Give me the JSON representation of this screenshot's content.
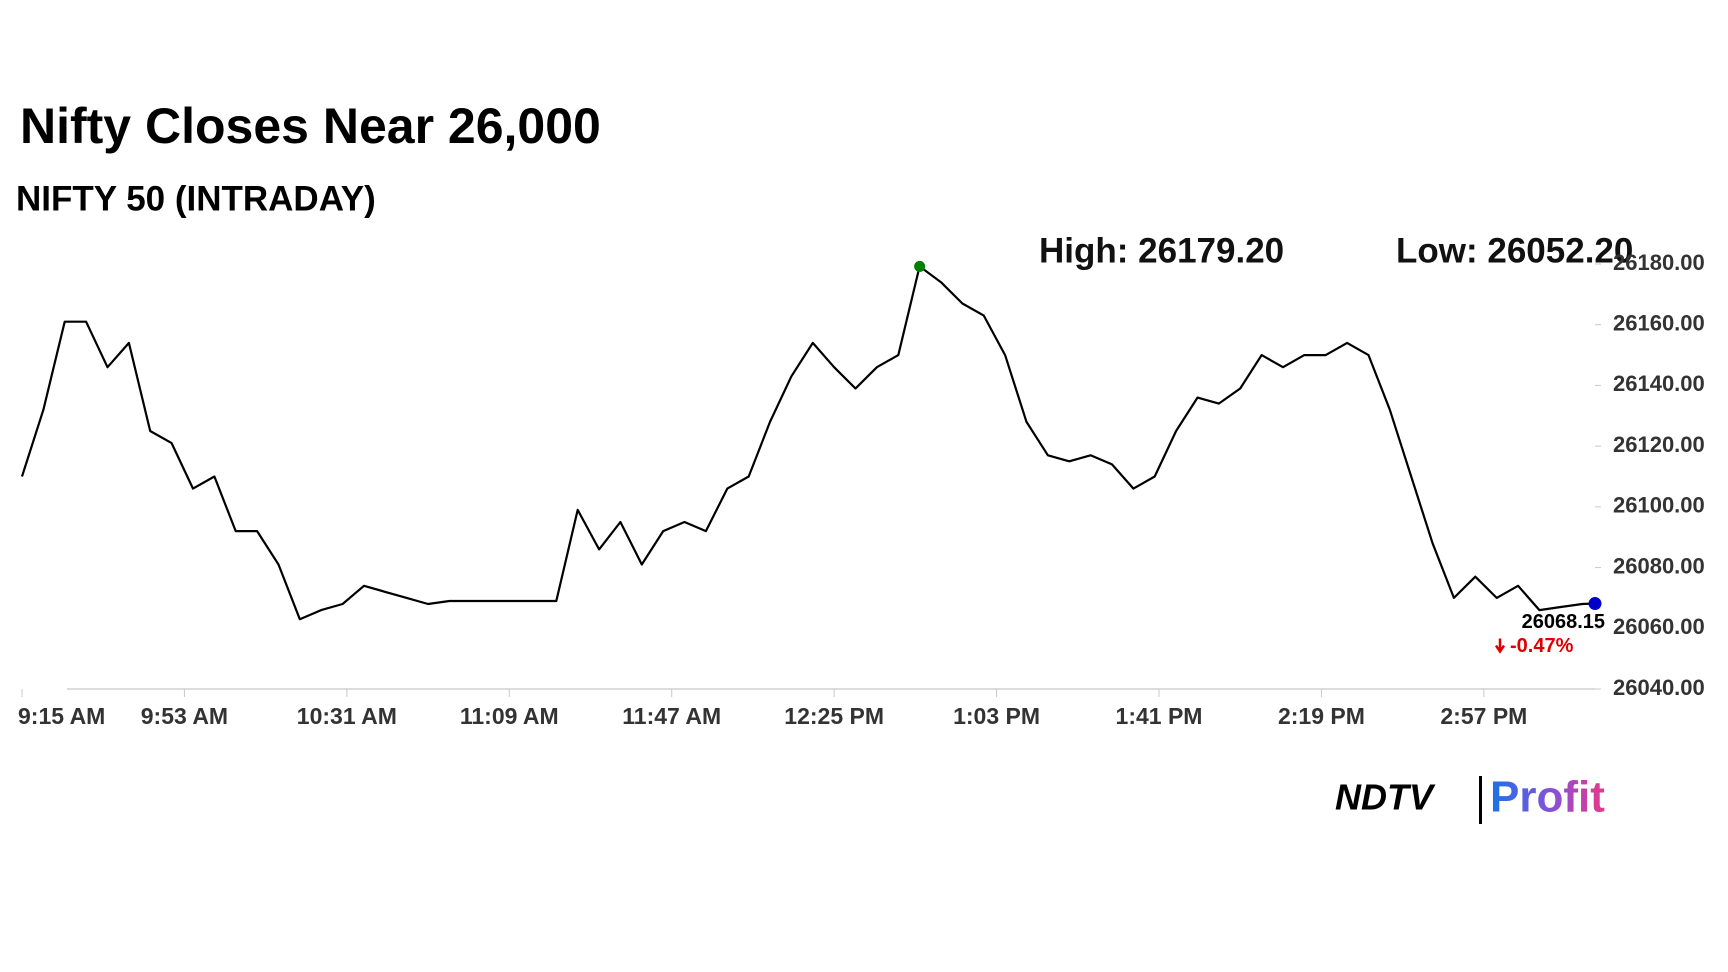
{
  "chart_data": {
    "type": "line",
    "title": "Nifty Closes Near 26,000",
    "subtitle": "NIFTY 50 (INTRADAY)",
    "high_label": "High: 26179.20",
    "low_label": "Low: 26052.20",
    "change_label": "-0.47%",
    "change_color": "#e00000",
    "color": "#000000",
    "high_marker_color": "#008000",
    "last_marker_color": "#0000c8",
    "x": [
      "9:15 AM",
      "9:20 AM",
      "9:25 AM",
      "9:30 AM",
      "9:35 AM",
      "9:40 AM",
      "9:45 AM",
      "9:50 AM",
      "9:55 AM",
      "10:00 AM",
      "10:05 AM",
      "10:10 AM",
      "10:15 AM",
      "10:20 AM",
      "10:25 AM",
      "10:30 AM",
      "10:35 AM",
      "10:40 AM",
      "10:45 AM",
      "10:50 AM",
      "10:55 AM",
      "11:00 AM",
      "11:05 AM",
      "11:10 AM",
      "11:15 AM",
      "11:20 AM",
      "11:25 AM",
      "11:30 AM",
      "11:35 AM",
      "11:40 AM",
      "11:45 AM",
      "11:50 AM",
      "11:55 AM",
      "12:00 PM",
      "12:05 PM",
      "12:10 PM",
      "12:15 PM",
      "12:20 PM",
      "12:25 PM",
      "12:30 PM",
      "12:35 PM",
      "12:40 PM",
      "12:45 PM",
      "12:50 PM",
      "12:55 PM",
      "1:00 PM",
      "1:05 PM",
      "1:10 PM",
      "1:15 PM",
      "1:20 PM",
      "1:25 PM",
      "1:30 PM",
      "1:35 PM",
      "1:40 PM",
      "1:45 PM",
      "1:50 PM",
      "1:55 PM",
      "2:00 PM",
      "2:05 PM",
      "2:10 PM",
      "2:15 PM",
      "2:20 PM",
      "2:25 PM",
      "2:30 PM",
      "2:35 PM",
      "2:40 PM",
      "2:45 PM",
      "2:50 PM",
      "2:55 PM",
      "3:00 PM",
      "3:05 PM",
      "3:10 PM",
      "3:15 PM",
      "3:20 PM",
      "3:23 PM"
    ],
    "values": [
      26110,
      26132,
      26161,
      26161,
      26146,
      26154,
      26125,
      26121,
      26106,
      26110,
      26092,
      26092,
      26081,
      26063,
      26066,
      26068,
      26074,
      26072,
      26070,
      26068,
      26069,
      26069,
      26069,
      26069,
      26069,
      26069,
      26099,
      26086,
      26095,
      26081,
      26092,
      26095,
      26092,
      26106,
      26110,
      26128,
      26143,
      26154,
      26146,
      26139,
      26146,
      26150,
      26179.2,
      26174,
      26167,
      26163,
      26150,
      26128,
      26117,
      26115,
      26117,
      26114,
      26106,
      26110,
      26125,
      26136,
      26134,
      26139,
      26150,
      26146,
      26150,
      26150,
      26154,
      26150,
      26132,
      26110,
      26088,
      26070,
      26077,
      26070,
      26074,
      26066,
      26067,
      26068,
      26068.15
    ],
    "xlim": [
      "9:15 AM",
      "3:23 PM"
    ],
    "xticks": [
      "9:15 AM",
      "9:53 AM",
      "10:31 AM",
      "11:09 AM",
      "11:47 AM",
      "12:25 PM",
      "1:03 PM",
      "1:41 PM",
      "2:19 PM",
      "2:57 PM"
    ],
    "ylim": [
      26040,
      26180
    ],
    "yticks": [
      {
        "value": 26040,
        "label": "26040.00"
      },
      {
        "value": 26060,
        "label": "26060.00"
      },
      {
        "value": 26080,
        "label": "26080.00"
      },
      {
        "value": 26100,
        "label": "26100.00"
      },
      {
        "value": 26120,
        "label": "26120.00"
      },
      {
        "value": 26140,
        "label": "26140.00"
      },
      {
        "value": 26160,
        "label": "26160.00"
      },
      {
        "value": 26180,
        "label": "26180.00"
      }
    ],
    "logo": {
      "left": "NDTV",
      "right": "Profit"
    }
  }
}
